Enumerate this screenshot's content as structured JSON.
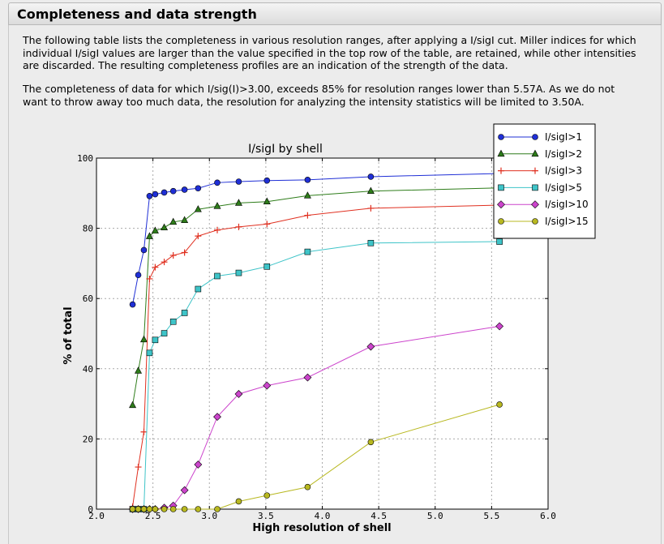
{
  "section": {
    "title": "Completeness and data strength",
    "paragraph1": "The following table lists the completeness in various resolution ranges, after applying a I/sigI cut. Miller indices for which individual I/sigI values are larger than the value specified in the top row of the table, are retained, while other intensities are discarded. The resulting completeness profiles are an indication of the strength of the data.",
    "paragraph2": "The completeness of data for which I/sig(I)>3.00, exceeds 85% for resolution ranges lower than 5.57A. As we do not want to throw away too much data, the resolution for analyzing the intensity statistics will be limited to 3.50A."
  },
  "chart_data": {
    "type": "line",
    "title": "I/sigI by shell",
    "xlabel": "High resolution of shell",
    "ylabel": "% of total",
    "xlim": [
      2.0,
      6.0
    ],
    "ylim": [
      0,
      100
    ],
    "xticks": [
      "2.0",
      "2.5",
      "3.0",
      "3.5",
      "4.0",
      "4.5",
      "5.0",
      "5.5",
      "6.0"
    ],
    "yticks": [
      "0",
      "20",
      "40",
      "60",
      "80",
      "100"
    ],
    "grid": true,
    "legend_position": "top-right",
    "x": [
      2.32,
      2.37,
      2.42,
      2.47,
      2.52,
      2.6,
      2.68,
      2.78,
      2.9,
      3.07,
      3.26,
      3.51,
      3.87,
      4.43,
      5.57
    ],
    "series": [
      {
        "name": "I/sigI>1",
        "color": "#1f2fd6",
        "marker": "circle",
        "values": [
          58.3,
          66.7,
          73.8,
          89.2,
          89.7,
          90.2,
          90.6,
          91.0,
          91.4,
          93.0,
          93.3,
          93.6,
          93.8,
          94.7,
          95.6
        ]
      },
      {
        "name": "I/sigI>2",
        "color": "#2e7d1a",
        "marker": "triangle",
        "values": [
          29.6,
          39.4,
          48.3,
          77.7,
          79.3,
          80.2,
          81.8,
          82.3,
          85.4,
          86.3,
          87.2,
          87.6,
          89.3,
          90.6,
          91.5
        ]
      },
      {
        "name": "I/sigI>3",
        "color": "#e03020",
        "marker": "plus",
        "values": [
          0.7,
          12.0,
          22.0,
          65.6,
          68.9,
          70.4,
          72.3,
          73.1,
          77.8,
          79.5,
          80.4,
          81.2,
          83.7,
          85.7,
          86.6
        ]
      },
      {
        "name": "I/sigI>5",
        "color": "#3ec4c8",
        "marker": "square",
        "values": [
          0.0,
          0.0,
          0.0,
          44.5,
          48.2,
          50.1,
          53.4,
          55.9,
          62.7,
          66.4,
          67.3,
          69.1,
          73.3,
          75.8,
          76.2
        ]
      },
      {
        "name": "I/sigI>10",
        "color": "#cc44cc",
        "marker": "diamond",
        "values": [
          0.0,
          0.0,
          0.0,
          0.0,
          0.0,
          0.4,
          1.0,
          5.4,
          12.7,
          26.3,
          32.8,
          35.2,
          37.5,
          46.3,
          52.1
        ]
      },
      {
        "name": "I/sigI>15",
        "color": "#b8b820",
        "marker": "circle",
        "values": [
          0.0,
          0.0,
          0.0,
          0.0,
          0.0,
          0.0,
          0.0,
          0.0,
          0.0,
          0.0,
          2.2,
          3.9,
          6.3,
          19.1,
          29.8
        ]
      }
    ]
  }
}
